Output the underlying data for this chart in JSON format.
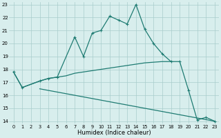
{
  "xlabel": "Humidex (Indice chaleur)",
  "bg_color": "#d8eeed",
  "grid_color": "#a8cccb",
  "line_color": "#1e7b72",
  "xlim": [
    -0.5,
    23.5
  ],
  "ylim": [
    13.8,
    23.2
  ],
  "xticks": [
    0,
    1,
    2,
    3,
    4,
    5,
    6,
    7,
    8,
    9,
    10,
    11,
    12,
    13,
    14,
    15,
    16,
    17,
    18,
    19,
    20,
    21,
    22,
    23
  ],
  "yticks": [
    14,
    15,
    16,
    17,
    18,
    19,
    20,
    21,
    22,
    23
  ],
  "line_short": {
    "x": [
      0,
      1,
      3
    ],
    "y": [
      17.8,
      16.6,
      17.1
    ]
  },
  "line_rising": {
    "x": [
      3,
      4,
      5,
      6,
      7,
      8,
      9,
      10,
      11,
      12,
      13,
      14,
      15,
      16,
      17,
      18
    ],
    "y": [
      17.1,
      17.3,
      17.4,
      17.5,
      17.7,
      17.8,
      17.9,
      18.0,
      18.1,
      18.2,
      18.3,
      18.4,
      18.5,
      18.55,
      18.6,
      18.6
    ]
  },
  "line_lower": {
    "x": [
      3,
      23
    ],
    "y": [
      16.5,
      14.0
    ]
  },
  "line_main": {
    "x": [
      0,
      1,
      3,
      4,
      5,
      7,
      8,
      9,
      10,
      11,
      12,
      13,
      14,
      15,
      16,
      17,
      18,
      19,
      20,
      21,
      22,
      23
    ],
    "y": [
      17.8,
      16.6,
      17.1,
      17.3,
      17.4,
      20.5,
      19.0,
      20.8,
      21.0,
      22.1,
      21.8,
      21.5,
      23.0,
      21.1,
      20.0,
      19.2,
      18.6,
      18.6,
      16.4,
      14.1,
      14.3,
      14.0
    ]
  }
}
